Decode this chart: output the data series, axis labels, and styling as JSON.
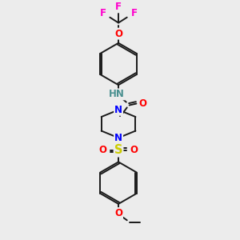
{
  "bg_color": "#ececec",
  "bond_color": "#1a1a1a",
  "atom_colors": {
    "N": "#0000ff",
    "O": "#ff0000",
    "F": "#ff00cc",
    "S": "#cccc00",
    "H": "#4a9090",
    "C": "#1a1a1a"
  },
  "font_size": 8.5,
  "bond_width": 1.4,
  "scale": 1.0
}
